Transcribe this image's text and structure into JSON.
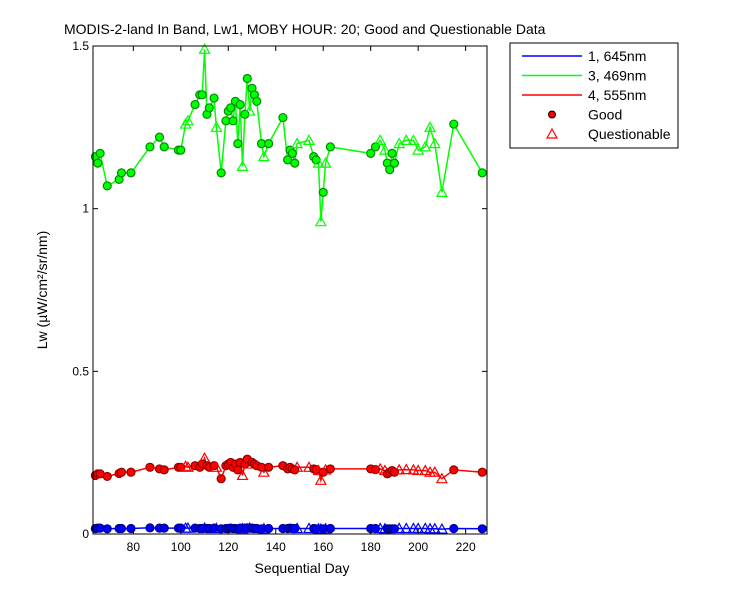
{
  "chart_data": {
    "type": "line",
    "title": "MODIS-2-land In Band,  Lw1, MOBY HOUR: 20;  Good and Questionable Data",
    "xlabel": "Sequential Day",
    "ylabel": "Lw (µW/cm²/sr/nm)",
    "xlim": [
      63,
      229
    ],
    "ylim": [
      0,
      1.5
    ],
    "xticks": [
      80,
      100,
      120,
      140,
      160,
      180,
      200,
      220
    ],
    "yticks": [
      0,
      0.5,
      1,
      1.5
    ],
    "ytick_labels": [
      "0",
      "0.5",
      "1",
      "1.5"
    ],
    "grid": false,
    "legend_position": "outside top-right",
    "legend": [
      {
        "label": "1, 645nm",
        "kind": "line",
        "color": "#0000ff"
      },
      {
        "label": "3, 469nm",
        "kind": "line",
        "color": "#00ff00"
      },
      {
        "label": "4, 555nm",
        "kind": "line",
        "color": "#ff0000"
      },
      {
        "label": "Good",
        "kind": "marker",
        "marker": "circle",
        "color": "#ff0000"
      },
      {
        "label": "Questionable",
        "kind": "marker",
        "marker": "triangle",
        "color": "#ff0000"
      }
    ],
    "series": [
      {
        "name": "3, 469nm",
        "color": "#00ff00",
        "points": [
          [
            64,
            1.16,
            "g"
          ],
          [
            65,
            1.14,
            "g"
          ],
          [
            66,
            1.17,
            "g"
          ],
          [
            69,
            1.07,
            "g"
          ],
          [
            74,
            1.09,
            "g"
          ],
          [
            75,
            1.11,
            "g"
          ],
          [
            79,
            1.11,
            "g"
          ],
          [
            87,
            1.19,
            "g"
          ],
          [
            91,
            1.22,
            "g"
          ],
          [
            93,
            1.19,
            "g"
          ],
          [
            99,
            1.18,
            "g"
          ],
          [
            100,
            1.18,
            "g"
          ],
          [
            102,
            1.26,
            "q"
          ],
          [
            103,
            1.27,
            "q"
          ],
          [
            106,
            1.32,
            "g"
          ],
          [
            108,
            1.35,
            "g"
          ],
          [
            109,
            1.35,
            "g"
          ],
          [
            110,
            1.49,
            "q"
          ],
          [
            111,
            1.29,
            "g"
          ],
          [
            112,
            1.31,
            "g"
          ],
          [
            114,
            1.34,
            "g"
          ],
          [
            115,
            1.25,
            "q"
          ],
          [
            117,
            1.11,
            "g"
          ],
          [
            119,
            1.27,
            "g"
          ],
          [
            120,
            1.3,
            "g"
          ],
          [
            121,
            1.31,
            "g"
          ],
          [
            122,
            1.27,
            "g"
          ],
          [
            123,
            1.33,
            "g"
          ],
          [
            124,
            1.2,
            "g"
          ],
          [
            125,
            1.32,
            "g"
          ],
          [
            126,
            1.13,
            "q"
          ],
          [
            127,
            1.29,
            "g"
          ],
          [
            128,
            1.4,
            "g"
          ],
          [
            129,
            1.3,
            "q"
          ],
          [
            130,
            1.37,
            "g"
          ],
          [
            131,
            1.35,
            "g"
          ],
          [
            132,
            1.33,
            "g"
          ],
          [
            134,
            1.2,
            "g"
          ],
          [
            135,
            1.16,
            "q"
          ],
          [
            137,
            1.2,
            "g"
          ],
          [
            143,
            1.28,
            "g"
          ],
          [
            145,
            1.15,
            "g"
          ],
          [
            146,
            1.18,
            "g"
          ],
          [
            147,
            1.17,
            "g"
          ],
          [
            148,
            1.14,
            "g"
          ],
          [
            149,
            1.2,
            "q"
          ],
          [
            154,
            1.21,
            "q"
          ],
          [
            156,
            1.16,
            "g"
          ],
          [
            157,
            1.15,
            "g"
          ],
          [
            158,
            1.14,
            "q"
          ],
          [
            159,
            0.96,
            "q"
          ],
          [
            160,
            1.05,
            "g"
          ],
          [
            161,
            1.14,
            "q"
          ],
          [
            163,
            1.19,
            "g"
          ],
          [
            180,
            1.17,
            "g"
          ],
          [
            182,
            1.19,
            "g"
          ],
          [
            184,
            1.21,
            "q"
          ],
          [
            186,
            1.18,
            "q"
          ],
          [
            187,
            1.14,
            "g"
          ],
          [
            188,
            1.12,
            "g"
          ],
          [
            189,
            1.17,
            "g"
          ],
          [
            190,
            1.14,
            "g"
          ],
          [
            192,
            1.2,
            "q"
          ],
          [
            195,
            1.21,
            "q"
          ],
          [
            198,
            1.21,
            "q"
          ],
          [
            200,
            1.18,
            "q"
          ],
          [
            203,
            1.19,
            "q"
          ],
          [
            205,
            1.25,
            "q"
          ],
          [
            207,
            1.2,
            "q"
          ],
          [
            210,
            1.05,
            "q"
          ],
          [
            215,
            1.26,
            "g"
          ],
          [
            227,
            1.11,
            "g"
          ]
        ]
      },
      {
        "name": "4, 555nm",
        "color": "#ff0000",
        "points": [
          [
            64,
            0.18,
            "g"
          ],
          [
            65,
            0.185,
            "g"
          ],
          [
            66,
            0.185,
            "g"
          ],
          [
            69,
            0.177,
            "g"
          ],
          [
            74,
            0.186,
            "g"
          ],
          [
            75,
            0.19,
            "g"
          ],
          [
            79,
            0.19,
            "g"
          ],
          [
            87,
            0.205,
            "g"
          ],
          [
            91,
            0.2,
            "g"
          ],
          [
            93,
            0.197,
            "g"
          ],
          [
            99,
            0.205,
            "g"
          ],
          [
            100,
            0.205,
            "g"
          ],
          [
            102,
            0.208,
            "q"
          ],
          [
            103,
            0.205,
            "q"
          ],
          [
            106,
            0.21,
            "g"
          ],
          [
            108,
            0.205,
            "g"
          ],
          [
            109,
            0.215,
            "g"
          ],
          [
            110,
            0.233,
            "q"
          ],
          [
            111,
            0.21,
            "g"
          ],
          [
            112,
            0.205,
            "g"
          ],
          [
            114,
            0.21,
            "g"
          ],
          [
            115,
            0.205,
            "q"
          ],
          [
            117,
            0.17,
            "g"
          ],
          [
            119,
            0.21,
            "g"
          ],
          [
            120,
            0.215,
            "g"
          ],
          [
            121,
            0.22,
            "g"
          ],
          [
            122,
            0.205,
            "g"
          ],
          [
            123,
            0.215,
            "g"
          ],
          [
            124,
            0.197,
            "g"
          ],
          [
            125,
            0.22,
            "g"
          ],
          [
            126,
            0.18,
            "q"
          ],
          [
            127,
            0.215,
            "g"
          ],
          [
            128,
            0.23,
            "g"
          ],
          [
            129,
            0.215,
            "q"
          ],
          [
            130,
            0.22,
            "g"
          ],
          [
            131,
            0.215,
            "g"
          ],
          [
            132,
            0.21,
            "g"
          ],
          [
            134,
            0.205,
            "g"
          ],
          [
            135,
            0.19,
            "q"
          ],
          [
            137,
            0.205,
            "g"
          ],
          [
            143,
            0.21,
            "g"
          ],
          [
            145,
            0.2,
            "g"
          ],
          [
            146,
            0.205,
            "g"
          ],
          [
            147,
            0.2,
            "g"
          ],
          [
            148,
            0.197,
            "g"
          ],
          [
            149,
            0.205,
            "q"
          ],
          [
            154,
            0.205,
            "q"
          ],
          [
            156,
            0.2,
            "g"
          ],
          [
            157,
            0.198,
            "g"
          ],
          [
            158,
            0.195,
            "q"
          ],
          [
            159,
            0.165,
            "q"
          ],
          [
            160,
            0.19,
            "g"
          ],
          [
            161,
            0.197,
            "q"
          ],
          [
            163,
            0.2,
            "g"
          ],
          [
            180,
            0.2,
            "g"
          ],
          [
            182,
            0.198,
            "g"
          ],
          [
            184,
            0.2,
            "q"
          ],
          [
            186,
            0.195,
            "q"
          ],
          [
            187,
            0.185,
            "g"
          ],
          [
            188,
            0.19,
            "g"
          ],
          [
            189,
            0.195,
            "g"
          ],
          [
            190,
            0.19,
            "g"
          ],
          [
            192,
            0.197,
            "q"
          ],
          [
            195,
            0.198,
            "q"
          ],
          [
            198,
            0.197,
            "q"
          ],
          [
            200,
            0.195,
            "q"
          ],
          [
            203,
            0.195,
            "q"
          ],
          [
            205,
            0.19,
            "q"
          ],
          [
            207,
            0.19,
            "q"
          ],
          [
            210,
            0.17,
            "q"
          ],
          [
            215,
            0.197,
            "g"
          ],
          [
            227,
            0.19,
            "g"
          ]
        ]
      },
      {
        "name": "1, 645nm",
        "color": "#0000ff",
        "points": [
          [
            64,
            0.017,
            "g"
          ],
          [
            65,
            0.018,
            "g"
          ],
          [
            66,
            0.018,
            "g"
          ],
          [
            69,
            0.016,
            "g"
          ],
          [
            74,
            0.017,
            "g"
          ],
          [
            75,
            0.017,
            "g"
          ],
          [
            79,
            0.017,
            "g"
          ],
          [
            87,
            0.019,
            "g"
          ],
          [
            91,
            0.018,
            "g"
          ],
          [
            93,
            0.018,
            "g"
          ],
          [
            99,
            0.018,
            "g"
          ],
          [
            100,
            0.018,
            "g"
          ],
          [
            102,
            0.018,
            "q"
          ],
          [
            103,
            0.018,
            "q"
          ],
          [
            106,
            0.018,
            "g"
          ],
          [
            108,
            0.017,
            "g"
          ],
          [
            109,
            0.017,
            "g"
          ],
          [
            110,
            0.018,
            "q"
          ],
          [
            111,
            0.017,
            "g"
          ],
          [
            112,
            0.017,
            "g"
          ],
          [
            114,
            0.018,
            "g"
          ],
          [
            115,
            0.017,
            "q"
          ],
          [
            117,
            0.016,
            "g"
          ],
          [
            119,
            0.017,
            "g"
          ],
          [
            120,
            0.017,
            "g"
          ],
          [
            121,
            0.018,
            "g"
          ],
          [
            122,
            0.017,
            "g"
          ],
          [
            123,
            0.017,
            "g"
          ],
          [
            124,
            0.016,
            "g"
          ],
          [
            125,
            0.018,
            "g"
          ],
          [
            126,
            0.016,
            "q"
          ],
          [
            127,
            0.018,
            "g"
          ],
          [
            128,
            0.019,
            "g"
          ],
          [
            129,
            0.018,
            "q"
          ],
          [
            130,
            0.018,
            "g"
          ],
          [
            131,
            0.017,
            "g"
          ],
          [
            132,
            0.017,
            "g"
          ],
          [
            134,
            0.016,
            "g"
          ],
          [
            135,
            0.016,
            "q"
          ],
          [
            137,
            0.017,
            "g"
          ],
          [
            143,
            0.017,
            "g"
          ],
          [
            145,
            0.017,
            "g"
          ],
          [
            146,
            0.018,
            "g"
          ],
          [
            147,
            0.017,
            "g"
          ],
          [
            148,
            0.017,
            "g"
          ],
          [
            149,
            0.017,
            "q"
          ],
          [
            154,
            0.017,
            "q"
          ],
          [
            156,
            0.017,
            "g"
          ],
          [
            157,
            0.016,
            "g"
          ],
          [
            158,
            0.016,
            "q"
          ],
          [
            159,
            0.015,
            "q"
          ],
          [
            160,
            0.016,
            "g"
          ],
          [
            161,
            0.016,
            "q"
          ],
          [
            163,
            0.017,
            "g"
          ],
          [
            180,
            0.017,
            "g"
          ],
          [
            182,
            0.017,
            "g"
          ],
          [
            184,
            0.017,
            "q"
          ],
          [
            186,
            0.016,
            "q"
          ],
          [
            187,
            0.016,
            "g"
          ],
          [
            188,
            0.016,
            "g"
          ],
          [
            189,
            0.016,
            "g"
          ],
          [
            190,
            0.016,
            "g"
          ],
          [
            192,
            0.017,
            "q"
          ],
          [
            195,
            0.017,
            "q"
          ],
          [
            198,
            0.017,
            "q"
          ],
          [
            200,
            0.017,
            "q"
          ],
          [
            203,
            0.017,
            "q"
          ],
          [
            205,
            0.016,
            "q"
          ],
          [
            207,
            0.016,
            "q"
          ],
          [
            210,
            0.015,
            "q"
          ],
          [
            215,
            0.017,
            "g"
          ],
          [
            227,
            0.016,
            "g"
          ]
        ]
      }
    ]
  }
}
